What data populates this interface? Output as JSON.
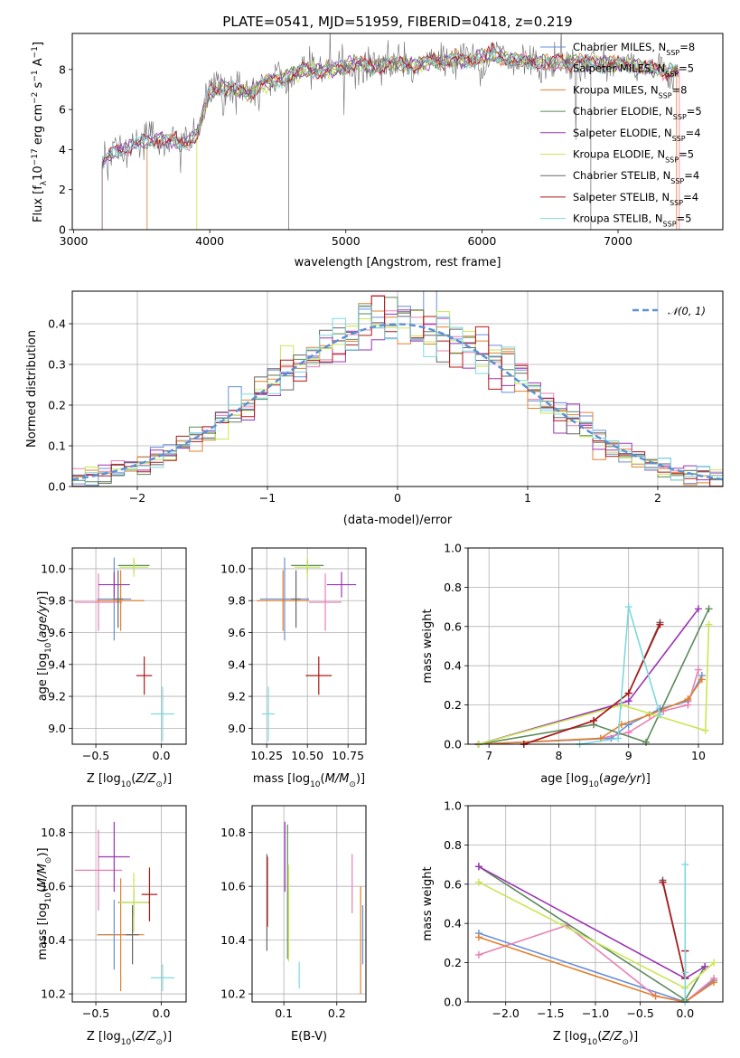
{
  "title": "PLATE=0541, MJD=51959, FIBERID=0418, z=0.219",
  "colors": {
    "chabrier_miles": "#6a8fd8",
    "salpeter_miles": "#e97fb4",
    "kroupa_miles": "#e0812e",
    "chabrier_elodie": "#5b8a5a",
    "salpeter_elodie": "#9b35b5",
    "kroupa_elodie": "#c9e651",
    "chabrier_stelib": "#666666",
    "salpeter_stelib": "#b01818",
    "kroupa_stelib": "#7fd8dc",
    "gauss": "#5b8fd6",
    "grid": "#b0b0b0"
  },
  "legend_entries": [
    {
      "key": "chabrier_miles",
      "pre": "Chabrier MILES, N",
      "sub": "SSP",
      "post": "=8"
    },
    {
      "key": "salpeter_miles",
      "pre": "Salpeter MILES, N",
      "sub": "SSP",
      "post": "=5"
    },
    {
      "key": "kroupa_miles",
      "pre": "Kroupa MILES, N",
      "sub": "SSP",
      "post": "=8"
    },
    {
      "key": "chabrier_elodie",
      "pre": "Chabrier ELODIE, N",
      "sub": "SSP",
      "post": "=5"
    },
    {
      "key": "salpeter_elodie",
      "pre": "Salpeter ELODIE, N",
      "sub": "SSP",
      "post": "=4"
    },
    {
      "key": "kroupa_elodie",
      "pre": "Kroupa ELODIE, N",
      "sub": "SSP",
      "post": "=5"
    },
    {
      "key": "chabrier_stelib",
      "pre": "Chabrier STELIB, N",
      "sub": "SSP",
      "post": "=4"
    },
    {
      "key": "salpeter_stelib",
      "pre": "Salpeter STELIB, N",
      "sub": "SSP",
      "post": "=4"
    },
    {
      "key": "kroupa_stelib",
      "pre": "Kroupa STELIB, N",
      "sub": "SSP",
      "post": "=5"
    }
  ],
  "chart_data": [
    {
      "id": "spectrum",
      "type": "line",
      "xlabel": "wavelength [Angstrom, rest frame]",
      "ylabel": "Flux [f_λ 10^-17 erg cm^-2 s^-1 A^-1]",
      "xlim": [
        2990,
        7770
      ],
      "ylim": [
        0,
        9.8
      ],
      "xticks": [
        3000,
        4000,
        5000,
        6000,
        7000
      ],
      "yticks": [
        0,
        2,
        4,
        6,
        8
      ],
      "grid": false,
      "legend": "right",
      "continuum": [
        [
          3200,
          3.3
        ],
        [
          3300,
          3.9
        ],
        [
          3400,
          4.1
        ],
        [
          3500,
          4.4
        ],
        [
          3600,
          4.5
        ],
        [
          3700,
          4.4
        ],
        [
          3800,
          4.3
        ],
        [
          3900,
          4.7
        ],
        [
          4000,
          6.9
        ],
        [
          4100,
          7.1
        ],
        [
          4200,
          7.0
        ],
        [
          4300,
          6.8
        ],
        [
          4400,
          7.3
        ],
        [
          4500,
          7.5
        ],
        [
          4600,
          7.7
        ],
        [
          4700,
          8.0
        ],
        [
          4800,
          7.9
        ],
        [
          4900,
          8.0
        ],
        [
          5000,
          8.2
        ],
        [
          5100,
          8.3
        ],
        [
          5200,
          8.1
        ],
        [
          5300,
          8.3
        ],
        [
          5400,
          8.3
        ],
        [
          5500,
          8.2
        ],
        [
          5600,
          8.4
        ],
        [
          5700,
          8.4
        ],
        [
          5800,
          8.5
        ],
        [
          5900,
          8.4
        ],
        [
          6000,
          8.6
        ],
        [
          6100,
          8.7
        ],
        [
          6200,
          8.5
        ],
        [
          6300,
          8.4
        ],
        [
          6400,
          8.4
        ],
        [
          6500,
          8.3
        ],
        [
          6600,
          8.4
        ],
        [
          6700,
          8.4
        ],
        [
          6800,
          8.3
        ],
        [
          6900,
          8.3
        ],
        [
          7000,
          8.3
        ],
        [
          7100,
          8.2
        ],
        [
          7200,
          8.1
        ],
        [
          7300,
          8.0
        ],
        [
          7400,
          7.9
        ]
      ]
    },
    {
      "id": "residual_hist",
      "type": "line",
      "xlabel": "(data-model)/error",
      "ylabel": "Normed distribution",
      "xlim": [
        -2.5,
        2.5
      ],
      "ylim": [
        0,
        0.48
      ],
      "xticks": [
        -2,
        -1,
        0,
        1,
        2
      ],
      "yticks": [
        0.0,
        0.1,
        0.2,
        0.3,
        0.4
      ],
      "grid": true,
      "legend": "top-right",
      "legend_label": "𝒩(0, 1)",
      "gaussian": {
        "mean": 0,
        "sigma": 1
      }
    },
    {
      "id": "age_vs_Z",
      "type": "scatter",
      "xlabel": "Z [log10(Z/Z⊙)]",
      "ylabel": "age [log10(age/yr)]",
      "xlim": [
        -0.68,
        0.19
      ],
      "ylim": [
        8.9,
        10.13
      ],
      "xticks": [
        -0.5,
        0.0
      ],
      "yticks": [
        9.0,
        9.2,
        9.4,
        9.6,
        9.8,
        10.0
      ],
      "grid": true,
      "points": [
        {
          "key": "chabrier_miles",
          "x": -0.36,
          "xerr": 0.13,
          "y": 9.81,
          "yerr": 0.26
        },
        {
          "key": "salpeter_miles",
          "x": -0.48,
          "xerr": 0.18,
          "y": 9.79,
          "yerr": 0.18
        },
        {
          "key": "kroupa_miles",
          "x": -0.31,
          "xerr": 0.18,
          "y": 9.8,
          "yerr": 0.19
        },
        {
          "key": "chabrier_elodie",
          "x": -0.21,
          "xerr": 0.12,
          "y": 10.02,
          "yerr": 0.04
        },
        {
          "key": "salpeter_elodie",
          "x": -0.36,
          "xerr": 0.12,
          "y": 9.9,
          "yerr": 0.08
        },
        {
          "key": "kroupa_elodie",
          "x": -0.21,
          "xerr": 0.11,
          "y": 10.01,
          "yerr": 0.06
        },
        {
          "key": "chabrier_stelib",
          "x": -0.33,
          "xerr": 0.04,
          "y": 9.81,
          "yerr": 0.18
        },
        {
          "key": "salpeter_stelib",
          "x": -0.13,
          "xerr": 0.06,
          "y": 9.33,
          "yerr": 0.12
        },
        {
          "key": "kroupa_stelib",
          "x": 0.01,
          "xerr": 0.09,
          "y": 9.09,
          "yerr": 0.17
        }
      ]
    },
    {
      "id": "age_vs_mass",
      "type": "scatter",
      "xlabel": "mass [log10(M/M⊙)]",
      "ylabel": "",
      "xlim": [
        10.16,
        10.86
      ],
      "ylim": [
        8.9,
        10.13
      ],
      "xticks": [
        10.25,
        10.5,
        10.75
      ],
      "yticks": [
        9.0,
        9.2,
        9.4,
        9.6,
        9.8,
        10.0
      ],
      "grid": true,
      "points": [
        {
          "key": "chabrier_miles",
          "x": 10.36,
          "xerr": 0.15,
          "y": 9.81,
          "yerr": 0.26
        },
        {
          "key": "salpeter_miles",
          "x": 10.61,
          "xerr": 0.1,
          "y": 9.79,
          "yerr": 0.18
        },
        {
          "key": "kroupa_miles",
          "x": 10.35,
          "xerr": 0.16,
          "y": 9.8,
          "yerr": 0.19
        },
        {
          "key": "chabrier_elodie",
          "x": 10.5,
          "xerr": 0.1,
          "y": 10.02,
          "yerr": 0.04
        },
        {
          "key": "salpeter_elodie",
          "x": 10.71,
          "xerr": 0.09,
          "y": 9.9,
          "yerr": 0.08
        },
        {
          "key": "kroupa_elodie",
          "x": 10.5,
          "xerr": 0.08,
          "y": 10.01,
          "yerr": 0.06
        },
        {
          "key": "chabrier_stelib",
          "x": 10.43,
          "xerr": 0.03,
          "y": 9.81,
          "yerr": 0.18
        },
        {
          "key": "salpeter_stelib",
          "x": 10.57,
          "xerr": 0.08,
          "y": 9.33,
          "yerr": 0.12
        },
        {
          "key": "kroupa_stelib",
          "x": 10.26,
          "xerr": 0.04,
          "y": 9.09,
          "yerr": 0.17
        }
      ]
    },
    {
      "id": "massweight_vs_age",
      "type": "line",
      "xlabel": "age [log10(age/yr)]",
      "ylabel": "mass weight",
      "xlim": [
        6.7,
        10.35
      ],
      "ylim": [
        0,
        1.0
      ],
      "xticks": [
        7,
        8,
        9,
        10
      ],
      "yticks": [
        0.0,
        0.2,
        0.4,
        0.6,
        0.8,
        1.0
      ],
      "grid": true,
      "series": [
        {
          "key": "chabrier_miles",
          "x": [
            6.85,
            8.75,
            9.0,
            9.45,
            9.85,
            10.05
          ],
          "y": [
            0.0,
            0.03,
            0.1,
            0.18,
            0.22,
            0.35
          ]
        },
        {
          "key": "salpeter_miles",
          "x": [
            6.85,
            8.6,
            9.0,
            9.5,
            9.85,
            10.0
          ],
          "y": [
            0.0,
            0.03,
            0.06,
            0.17,
            0.2,
            0.38
          ]
        },
        {
          "key": "kroupa_miles",
          "x": [
            6.85,
            8.6,
            8.9,
            9.3,
            9.85,
            10.05
          ],
          "y": [
            0.0,
            0.03,
            0.1,
            0.15,
            0.23,
            0.33
          ]
        },
        {
          "key": "chabrier_elodie",
          "x": [
            6.85,
            8.5,
            9.25,
            10.15
          ],
          "y": [
            0.0,
            0.1,
            0.01,
            0.69
          ]
        },
        {
          "key": "salpeter_elodie",
          "x": [
            6.85,
            9.0,
            10.0
          ],
          "y": [
            0.0,
            0.22,
            0.69
          ]
        },
        {
          "key": "kroupa_elodie",
          "x": [
            6.85,
            8.9,
            10.1,
            10.15
          ],
          "y": [
            0.0,
            0.2,
            0.07,
            0.61
          ]
        },
        {
          "key": "chabrier_stelib",
          "x": [
            7.5,
            8.5,
            9.0,
            9.45
          ],
          "y": [
            0.0,
            0.12,
            0.26,
            0.62
          ]
        },
        {
          "key": "salpeter_stelib",
          "x": [
            7.5,
            8.5,
            9.0,
            9.45
          ],
          "y": [
            0.0,
            0.12,
            0.26,
            0.61
          ]
        },
        {
          "key": "kroupa_stelib",
          "x": [
            8.3,
            8.85,
            9.0,
            9.45
          ],
          "y": [
            0.0,
            0.03,
            0.7,
            0.15
          ]
        }
      ]
    },
    {
      "id": "mass_vs_Z",
      "type": "scatter",
      "xlabel": "Z [log10(Z/Z⊙)]",
      "ylabel": "mass [log10(M/M⊙)]",
      "xlim": [
        -0.68,
        0.19
      ],
      "ylim": [
        10.17,
        10.9
      ],
      "xticks": [
        -0.5,
        0.0
      ],
      "yticks": [
        10.2,
        10.4,
        10.6,
        10.8
      ],
      "grid": true,
      "points": [
        {
          "key": "chabrier_miles",
          "x": -0.36,
          "xerr": 0.13,
          "y": 10.42,
          "yerr": 0.13
        },
        {
          "key": "salpeter_miles",
          "x": -0.48,
          "xerr": 0.18,
          "y": 10.66,
          "yerr": 0.15
        },
        {
          "key": "kroupa_miles",
          "x": -0.31,
          "xerr": 0.18,
          "y": 10.42,
          "yerr": 0.21
        },
        {
          "key": "chabrier_elodie",
          "x": -0.21,
          "xerr": 0.12,
          "y": 10.54,
          "yerr": 0.05
        },
        {
          "key": "salpeter_elodie",
          "x": -0.36,
          "xerr": 0.12,
          "y": 10.71,
          "yerr": 0.13
        },
        {
          "key": "kroupa_elodie",
          "x": -0.21,
          "xerr": 0.11,
          "y": 10.54,
          "yerr": 0.11
        },
        {
          "key": "chabrier_stelib",
          "x": -0.22,
          "xerr": 0.05,
          "y": 10.42,
          "yerr": 0.11
        },
        {
          "key": "salpeter_stelib",
          "x": -0.09,
          "xerr": 0.06,
          "y": 10.57,
          "yerr": 0.1
        },
        {
          "key": "kroupa_stelib",
          "x": 0.01,
          "xerr": 0.09,
          "y": 10.26,
          "yerr": 0.05
        }
      ]
    },
    {
      "id": "mass_vs_ebv",
      "type": "scatter",
      "xlabel": "E(B-V)",
      "ylabel": "",
      "xlim": [
        0.04,
        0.255
      ],
      "ylim": [
        10.17,
        10.9
      ],
      "xticks": [
        0.1,
        0.2
      ],
      "yticks": [
        10.2,
        10.4,
        10.6,
        10.8
      ],
      "grid": true,
      "points": [
        {
          "key": "chabrier_miles",
          "x": 0.249,
          "y": 10.42,
          "yerr": 0.11
        },
        {
          "key": "salpeter_miles",
          "x": 0.229,
          "y": 10.61,
          "yerr": 0.11
        },
        {
          "key": "kroupa_miles",
          "x": 0.245,
          "y": 10.4,
          "yerr": 0.2
        },
        {
          "key": "chabrier_elodie",
          "x": 0.107,
          "y": 10.58,
          "yerr": 0.25
        },
        {
          "key": "salpeter_elodie",
          "x": 0.102,
          "y": 10.71,
          "yerr": 0.13
        },
        {
          "key": "kroupa_elodie",
          "x": 0.109,
          "y": 10.5,
          "yerr": 0.18
        },
        {
          "key": "chabrier_stelib",
          "x": 0.068,
          "y": 10.54,
          "yerr": 0.18
        },
        {
          "key": "salpeter_stelib",
          "x": 0.069,
          "y": 10.58,
          "yerr": 0.13
        },
        {
          "key": "kroupa_stelib",
          "x": 0.129,
          "y": 10.27,
          "yerr": 0.05
        }
      ]
    },
    {
      "id": "massweight_vs_Z",
      "type": "line",
      "xlabel": "Z [log10(Z/Z⊙)]",
      "ylabel": "mass weight",
      "xlim": [
        -2.42,
        0.42
      ],
      "ylim": [
        0,
        1.0
      ],
      "xticks": [
        -2.0,
        -1.5,
        -1.0,
        -0.5,
        0.0
      ],
      "yticks": [
        0.0,
        0.2,
        0.4,
        0.6,
        0.8,
        1.0
      ],
      "grid": true,
      "series": [
        {
          "key": "chabrier_miles",
          "x": [
            -2.3,
            0.0,
            0.32
          ],
          "y": [
            0.35,
            0.0,
            0.11
          ]
        },
        {
          "key": "salpeter_miles",
          "x": [
            -2.3,
            -1.32,
            -0.33,
            0.0,
            0.32
          ],
          "y": [
            0.24,
            0.39,
            0.03,
            0.0,
            0.12
          ]
        },
        {
          "key": "kroupa_miles",
          "x": [
            -2.3,
            -0.33,
            0.0,
            0.32
          ],
          "y": [
            0.33,
            0.03,
            0.0,
            0.1
          ]
        },
        {
          "key": "chabrier_elodie",
          "x": [
            -2.3,
            0.0,
            0.22
          ],
          "y": [
            0.69,
            0.01,
            0.18
          ]
        },
        {
          "key": "salpeter_elodie",
          "x": [
            -2.3,
            0.0,
            0.22
          ],
          "y": [
            0.69,
            0.12,
            0.18
          ]
        },
        {
          "key": "kroupa_elodie",
          "x": [
            -2.3,
            0.0,
            0.32
          ],
          "y": [
            0.61,
            0.07,
            0.2
          ]
        },
        {
          "key": "chabrier_stelib",
          "x": [
            -0.25,
            0.0,
            0.0
          ],
          "y": [
            0.62,
            0.12,
            0.26
          ]
        },
        {
          "key": "salpeter_stelib",
          "x": [
            -0.25,
            0.0,
            0.0
          ],
          "y": [
            0.61,
            0.12,
            0.26
          ]
        },
        {
          "key": "kroupa_stelib",
          "x": [
            0.0,
            0.0,
            0.0
          ],
          "y": [
            0.0,
            0.7,
            0.15
          ]
        }
      ]
    }
  ]
}
